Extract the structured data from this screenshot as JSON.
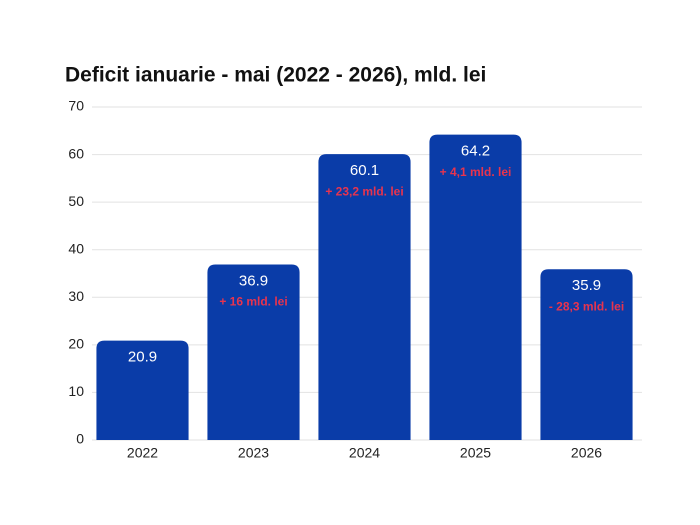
{
  "chart_data": {
    "type": "bar",
    "title": "Deficit ianuarie - mai (2022 - 2026), mld. lei",
    "categories": [
      "2022",
      "2023",
      "2024",
      "2025",
      "2026"
    ],
    "values": [
      20.9,
      36.9,
      60.1,
      64.2,
      35.9
    ],
    "annotations": [
      null,
      "+ 16 mld. lei",
      "+ 23,2 mld. lei",
      "+ 4,1 mld. lei",
      "- 28,3 mld. lei"
    ],
    "color": "#0a3ca8",
    "annotation_color": "#e8344e",
    "ylim": [
      0,
      70
    ],
    "yticks": [
      0,
      10,
      20,
      30,
      40,
      50,
      60,
      70
    ],
    "grid": true
  }
}
